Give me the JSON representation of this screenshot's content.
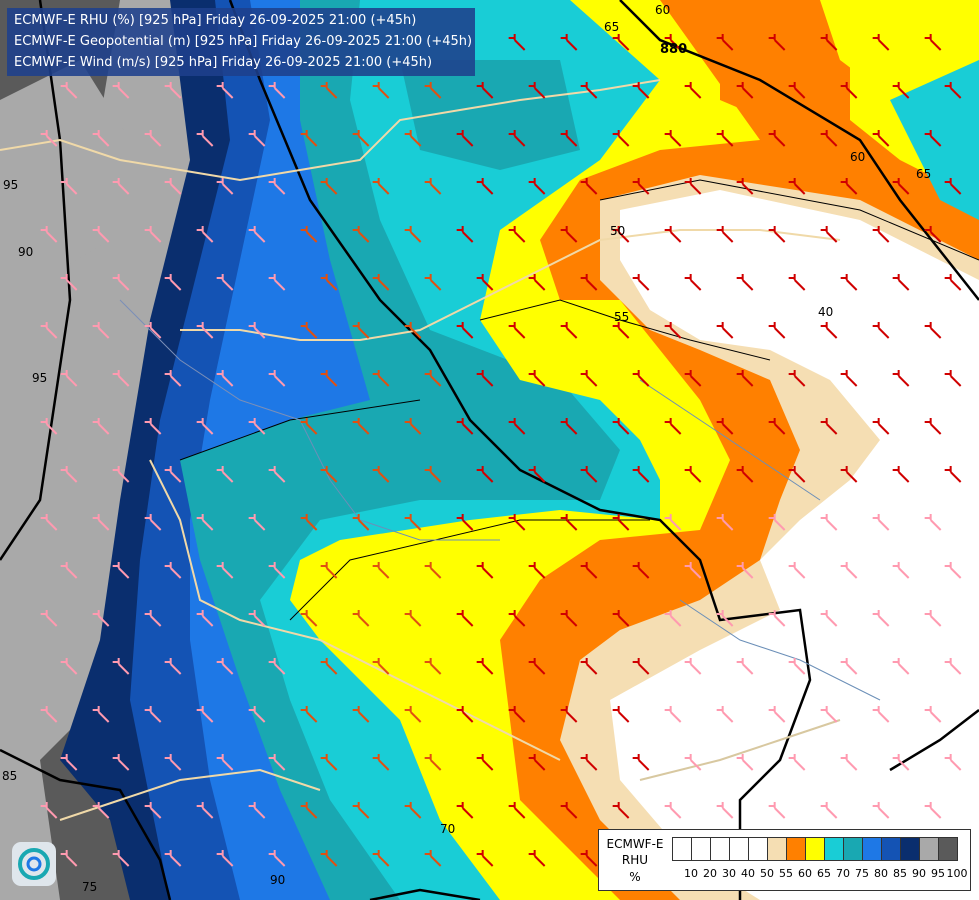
{
  "header": {
    "line1": "ECMWF-E RHU (%) [925 hPa] Friday 26-09-2025 21:00 (+45h)",
    "line2": "ECMWF-E Geopotential (m) [925 hPa] Friday 26-09-2025 21:00 (+45h)",
    "line3": "ECMWF-E Wind (m/s) [925 hPa] Friday 26-09-2025 21:00 (+45h)"
  },
  "map_labels": {
    "rhu": [
      "60",
      "65",
      "60",
      "65",
      "50",
      "55",
      "40",
      "95",
      "90",
      "95",
      "85",
      "70",
      "75",
      "90"
    ],
    "geopotential": [
      "880"
    ]
  },
  "legend": {
    "title_line1": "ECMWF-E",
    "title_line2": "RHU",
    "title_line3": "%",
    "ticks": [
      "10",
      "20",
      "30",
      "40",
      "50",
      "55",
      "60",
      "65",
      "70",
      "75",
      "80",
      "85",
      "90",
      "95",
      "100"
    ],
    "colors": [
      "#ffffff",
      "#ffffff",
      "#ffffff",
      "#ffffff",
      "#ffffff",
      "#f5deb3",
      "#ff8000",
      "#ffff00",
      "#19cdd6",
      "#19a8b2",
      "#1e78e6",
      "#1453b4",
      "#0a2e6e",
      "#a9a9a9",
      "#5a5a5a"
    ]
  },
  "colors": {
    "rhu_50_55": "#f5deb3",
    "rhu_55_60": "#ff8000",
    "rhu_60_65": "#ffff00",
    "rhu_65_70": "#19cdd6",
    "rhu_70_75": "#19a8b2",
    "rhu_75_80": "#1e78e6",
    "rhu_80_85": "#1453b4",
    "rhu_85_90": "#0a2e6e",
    "rhu_90_95": "#a9a9a9",
    "rhu_95_100": "#5a5a5a"
  }
}
